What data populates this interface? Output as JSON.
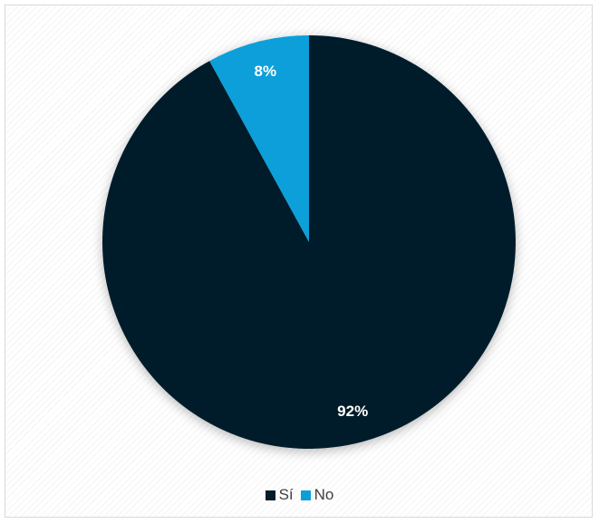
{
  "chart_data": {
    "type": "pie",
    "categories": [
      "Sí",
      "No"
    ],
    "values": [
      92,
      8
    ],
    "labels": [
      "92%",
      "8%"
    ],
    "colors": [
      "#061b2a",
      "#0b9fd9"
    ],
    "start_angle_deg": 0,
    "direction": "clockwise",
    "legend": "bottom"
  }
}
